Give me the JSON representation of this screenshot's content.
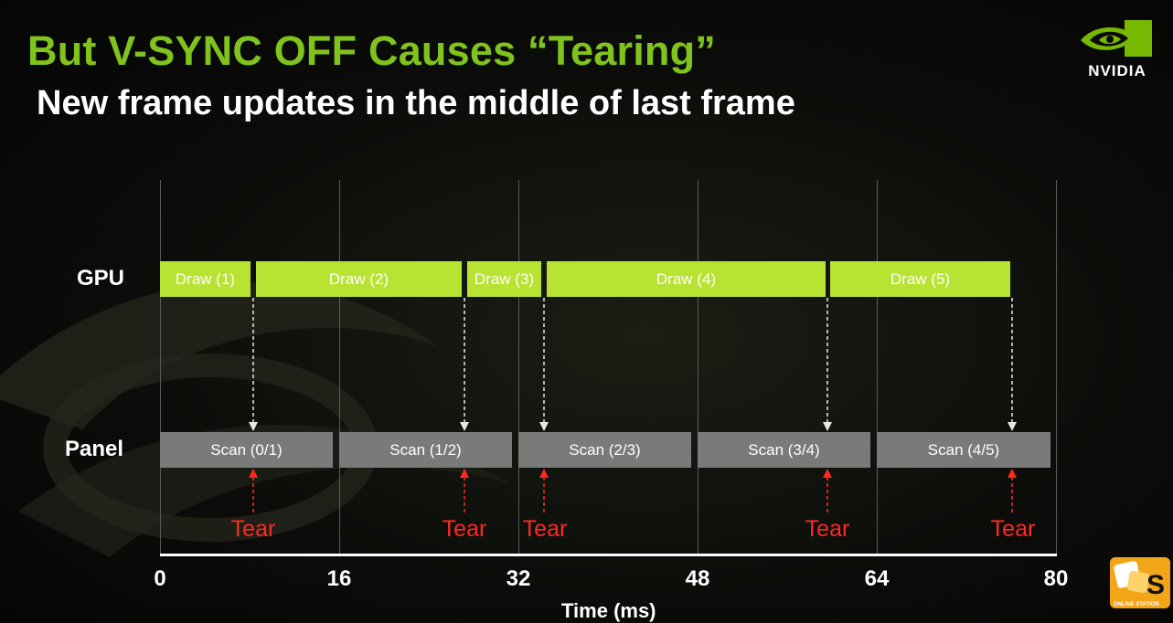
{
  "slide": {
    "title": "But V-SYNC OFF Causes “Tearing”",
    "subtitle": "New frame updates in the middle of last frame",
    "logo_text": "NVIDIA",
    "badge_text": "ONLINE STATION",
    "badge_letter": "S"
  },
  "diagram": {
    "rows": [
      "GPU",
      "Panel"
    ],
    "x_ticks": [
      "0",
      "16",
      "32",
      "48",
      "64",
      "80"
    ],
    "x_axis_label": "Time (ms)",
    "draw_labels": [
      "Draw (1)",
      "Draw (2)",
      "Draw (3)",
      "Draw (4)",
      "Draw (5)"
    ],
    "scan_labels": [
      "Scan (0/1)",
      "Scan (1/2)",
      "Scan (2/3)",
      "Scan (3/4)",
      "Scan (4/5)"
    ],
    "tear_labels": [
      "Tear",
      "Tear",
      "Tear",
      "Tear",
      "Tear"
    ],
    "colors": {
      "draw": "#b7e332",
      "scan": "#7a7a7a",
      "tear": "#ff2a1f",
      "title": "#7fc31c"
    }
  }
}
